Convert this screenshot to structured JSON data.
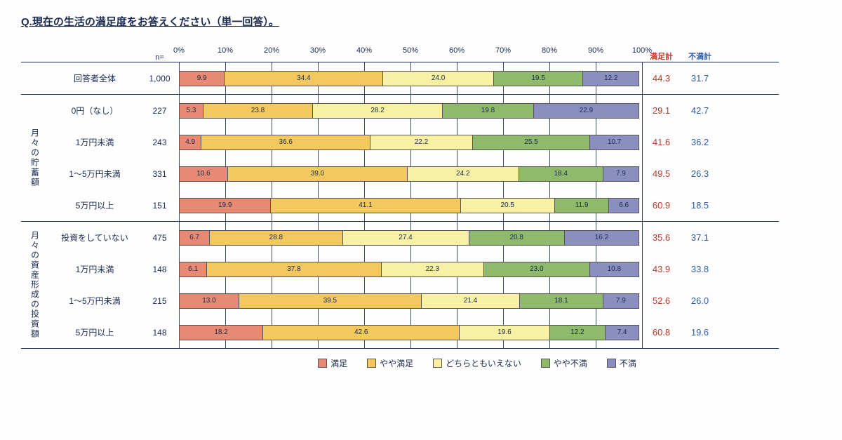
{
  "title": "Q.現在の生活の満足度をお答えください（単一回答）。",
  "n_header": "n=",
  "axis_ticks": [
    "0%",
    "10%",
    "20%",
    "30%",
    "40%",
    "50%",
    "60%",
    "70%",
    "80%",
    "90%",
    "100%"
  ],
  "sum_headers": {
    "satisfied": "満足計",
    "dissatisfied": "不満計"
  },
  "colors": {
    "satisfied": "#e88a73",
    "somewhat_satisfied": "#f3c95f",
    "neither": "#f8f0a2",
    "somewhat_dissatisfied": "#8fb96b",
    "dissatisfied": "#8a8fc0",
    "text": "#1a2a50",
    "satisfied_sum": "#c0392b",
    "dissatisfied_sum": "#2e5aa8",
    "rule": "#1a2a50"
  },
  "legend": [
    {
      "label": "満足",
      "key": "satisfied"
    },
    {
      "label": "やや満足",
      "key": "somewhat_satisfied"
    },
    {
      "label": "どちらともいえない",
      "key": "neither"
    },
    {
      "label": "やや不満",
      "key": "somewhat_dissatisfied"
    },
    {
      "label": "不満",
      "key": "dissatisfied"
    }
  ],
  "groups": [
    {
      "label": "",
      "rows": [
        {
          "label": "回答者全体",
          "n": "1,000",
          "values": [
            9.9,
            34.4,
            24.0,
            19.5,
            12.2
          ],
          "sat": "44.3",
          "dis": "31.7"
        }
      ]
    },
    {
      "label": "月々の貯蓄額",
      "rows": [
        {
          "label": "0円（なし）",
          "n": "227",
          "values": [
            5.3,
            23.8,
            28.2,
            19.8,
            22.9
          ],
          "sat": "29.1",
          "dis": "42.7"
        },
        {
          "label": "1万円未満",
          "n": "243",
          "values": [
            4.9,
            36.6,
            22.2,
            25.5,
            10.7
          ],
          "sat": "41.6",
          "dis": "36.2"
        },
        {
          "label": "1～5万円未満",
          "n": "331",
          "values": [
            10.6,
            39.0,
            24.2,
            18.4,
            7.9
          ],
          "sat": "49.5",
          "dis": "26.3"
        },
        {
          "label": "5万円以上",
          "n": "151",
          "values": [
            19.9,
            41.1,
            20.5,
            11.9,
            6.6
          ],
          "sat": "60.9",
          "dis": "18.5"
        }
      ]
    },
    {
      "label": "月々の資産形成の投資額",
      "rows": [
        {
          "label": "投資をしていない",
          "n": "475",
          "values": [
            6.7,
            28.8,
            27.4,
            20.8,
            16.2
          ],
          "sat": "35.6",
          "dis": "37.1"
        },
        {
          "label": "1万円未満",
          "n": "148",
          "values": [
            6.1,
            37.8,
            22.3,
            23.0,
            10.8
          ],
          "sat": "43.9",
          "dis": "33.8"
        },
        {
          "label": "1～5万円未満",
          "n": "215",
          "values": [
            13.0,
            39.5,
            21.4,
            18.1,
            7.9
          ],
          "sat": "52.6",
          "dis": "26.0"
        },
        {
          "label": "5万円以上",
          "n": "148",
          "values": [
            18.2,
            42.6,
            19.6,
            12.2,
            7.4
          ],
          "sat": "60.8",
          "dis": "19.6"
        }
      ]
    }
  ],
  "segment_keys": [
    "satisfied",
    "somewhat_satisfied",
    "neither",
    "somewhat_dissatisfied",
    "dissatisfied"
  ]
}
